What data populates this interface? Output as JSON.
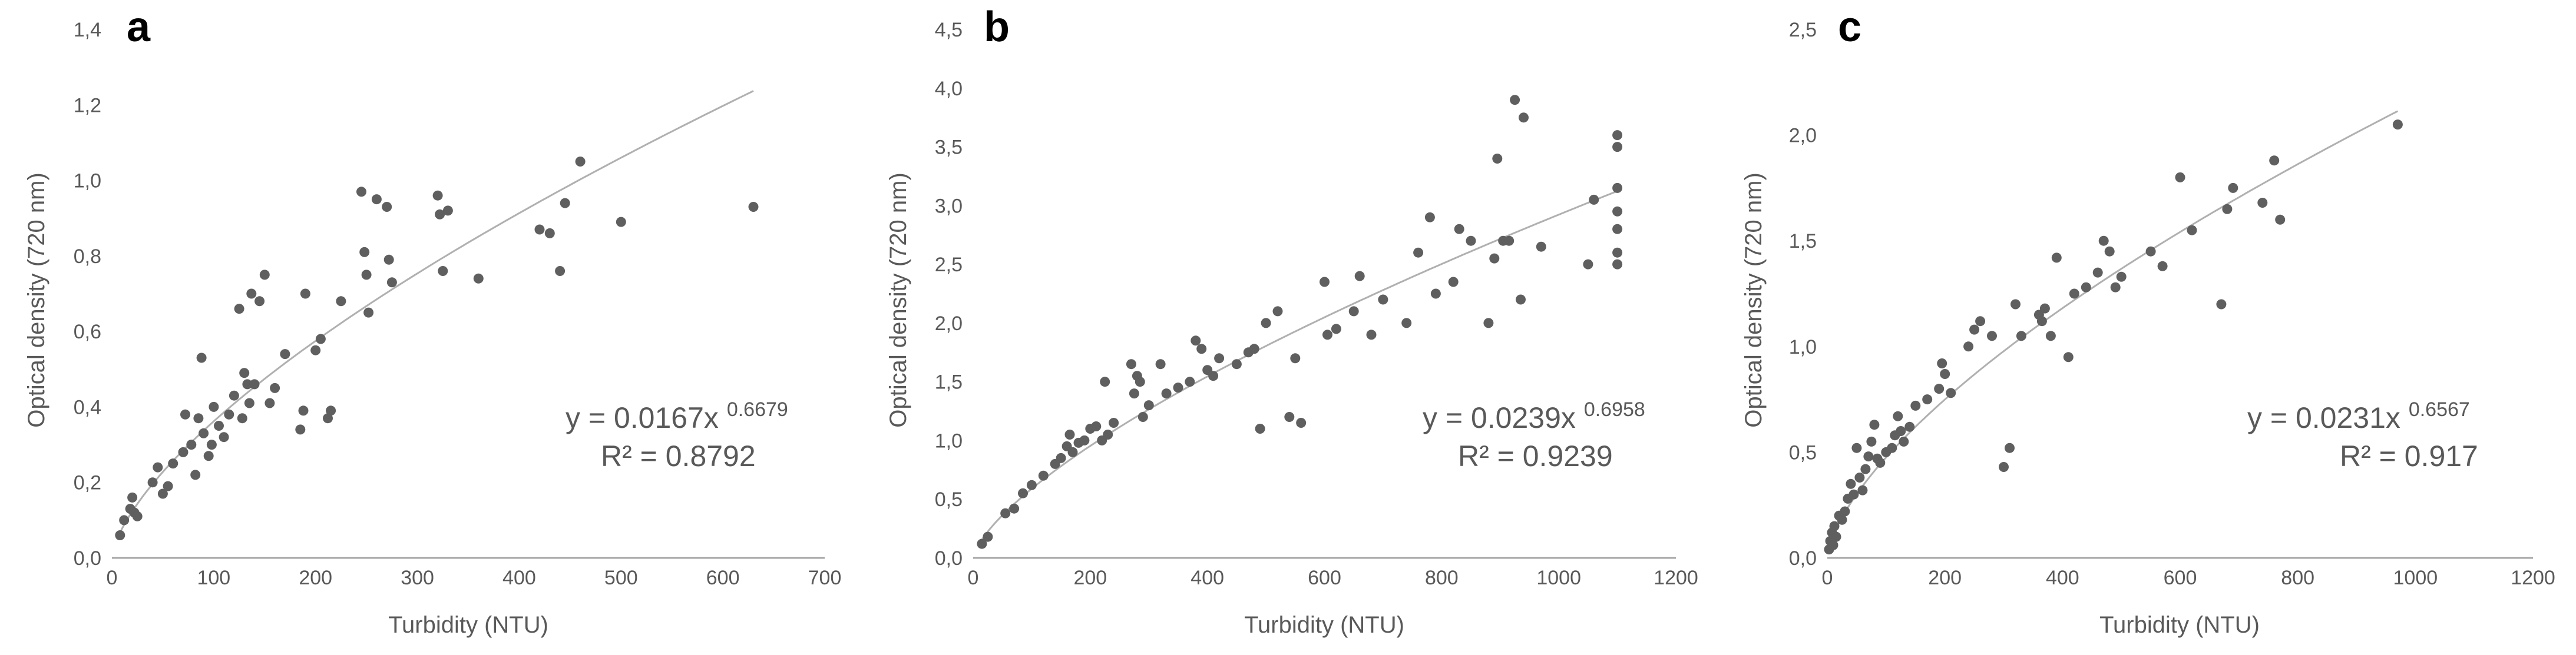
{
  "chart_data": [
    {
      "panel_label": "a",
      "type": "scatter",
      "xlabel": "Turbidity (NTU)",
      "ylabel": "Optical density (720 nm)",
      "xlim": [
        0,
        700
      ],
      "ylim": [
        0,
        1.4
      ],
      "xticks": [
        0,
        100,
        200,
        300,
        400,
        500,
        600,
        700
      ],
      "yticks": [
        "0,0",
        "0,2",
        "0,4",
        "0,6",
        "0,8",
        "1,0",
        "1,2",
        "1,4"
      ],
      "equation": "y = 0.0167x",
      "exponent": "0.6679",
      "r2": "R² = 0.8792",
      "fit": {
        "a": 0.0167,
        "b": 0.6679,
        "x_range": [
          5,
          630
        ]
      },
      "colors": {
        "points": "#5f5f5f",
        "trend": "#b0b0b0",
        "axis": "#a6a6a6",
        "tick_text": "#595959"
      },
      "points": [
        [
          8,
          0.06
        ],
        [
          12,
          0.1
        ],
        [
          18,
          0.13
        ],
        [
          20,
          0.16
        ],
        [
          22,
          0.12
        ],
        [
          25,
          0.11
        ],
        [
          40,
          0.2
        ],
        [
          45,
          0.24
        ],
        [
          50,
          0.17
        ],
        [
          55,
          0.19
        ],
        [
          60,
          0.25
        ],
        [
          70,
          0.28
        ],
        [
          72,
          0.38
        ],
        [
          78,
          0.3
        ],
        [
          82,
          0.22
        ],
        [
          85,
          0.37
        ],
        [
          88,
          0.53
        ],
        [
          90,
          0.33
        ],
        [
          95,
          0.27
        ],
        [
          98,
          0.3
        ],
        [
          100,
          0.4
        ],
        [
          105,
          0.35
        ],
        [
          110,
          0.32
        ],
        [
          115,
          0.38
        ],
        [
          120,
          0.43
        ],
        [
          125,
          0.66
        ],
        [
          128,
          0.37
        ],
        [
          130,
          0.49
        ],
        [
          133,
          0.46
        ],
        [
          135,
          0.41
        ],
        [
          137,
          0.7
        ],
        [
          140,
          0.46
        ],
        [
          145,
          0.68
        ],
        [
          150,
          0.75
        ],
        [
          155,
          0.41
        ],
        [
          160,
          0.45
        ],
        [
          170,
          0.54
        ],
        [
          185,
          0.34
        ],
        [
          188,
          0.39
        ],
        [
          190,
          0.7
        ],
        [
          200,
          0.55
        ],
        [
          205,
          0.58
        ],
        [
          212,
          0.37
        ],
        [
          215,
          0.39
        ],
        [
          225,
          0.68
        ],
        [
          245,
          0.97
        ],
        [
          248,
          0.81
        ],
        [
          250,
          0.75
        ],
        [
          252,
          0.65
        ],
        [
          260,
          0.95
        ],
        [
          270,
          0.93
        ],
        [
          272,
          0.79
        ],
        [
          275,
          0.73
        ],
        [
          320,
          0.96
        ],
        [
          322,
          0.91
        ],
        [
          325,
          0.76
        ],
        [
          330,
          0.92
        ],
        [
          360,
          0.74
        ],
        [
          420,
          0.87
        ],
        [
          430,
          0.86
        ],
        [
          440,
          0.76
        ],
        [
          445,
          0.94
        ],
        [
          460,
          1.05
        ],
        [
          500,
          0.89
        ],
        [
          630,
          0.93
        ]
      ]
    },
    {
      "panel_label": "b",
      "type": "scatter",
      "xlabel": "Turbidity (NTU)",
      "ylabel": "Optical density (720 nm)",
      "xlim": [
        0,
        1200
      ],
      "ylim": [
        0,
        4.5
      ],
      "xticks": [
        0,
        200,
        400,
        600,
        800,
        1000,
        1200
      ],
      "yticks": [
        "0,0",
        "0,5",
        "1,0",
        "1,5",
        "2,0",
        "2,5",
        "3,0",
        "3,5",
        "4,0",
        "4,5"
      ],
      "equation": "y = 0.0239x",
      "exponent": "0.6958",
      "r2": "R² = 0.9239",
      "fit": {
        "a": 0.0239,
        "b": 0.6958,
        "x_range": [
          10,
          1100
        ]
      },
      "colors": {
        "points": "#5f5f5f",
        "trend": "#b0b0b0",
        "axis": "#a6a6a6",
        "tick_text": "#595959"
      },
      "points": [
        [
          15,
          0.12
        ],
        [
          25,
          0.18
        ],
        [
          55,
          0.38
        ],
        [
          70,
          0.42
        ],
        [
          85,
          0.55
        ],
        [
          100,
          0.62
        ],
        [
          120,
          0.7
        ],
        [
          140,
          0.8
        ],
        [
          150,
          0.85
        ],
        [
          160,
          0.95
        ],
        [
          165,
          1.05
        ],
        [
          170,
          0.9
        ],
        [
          180,
          0.98
        ],
        [
          190,
          1.0
        ],
        [
          200,
          1.1
        ],
        [
          210,
          1.12
        ],
        [
          220,
          1.0
        ],
        [
          225,
          1.5
        ],
        [
          230,
          1.05
        ],
        [
          240,
          1.15
        ],
        [
          270,
          1.65
        ],
        [
          275,
          1.4
        ],
        [
          280,
          1.55
        ],
        [
          285,
          1.5
        ],
        [
          290,
          1.2
        ],
        [
          300,
          1.3
        ],
        [
          320,
          1.65
        ],
        [
          330,
          1.4
        ],
        [
          350,
          1.45
        ],
        [
          370,
          1.5
        ],
        [
          380,
          1.85
        ],
        [
          390,
          1.78
        ],
        [
          400,
          1.6
        ],
        [
          410,
          1.55
        ],
        [
          420,
          1.7
        ],
        [
          450,
          1.65
        ],
        [
          470,
          1.75
        ],
        [
          480,
          1.78
        ],
        [
          490,
          1.1
        ],
        [
          500,
          2.0
        ],
        [
          520,
          2.1
        ],
        [
          540,
          1.2
        ],
        [
          550,
          1.7
        ],
        [
          560,
          1.15
        ],
        [
          600,
          2.35
        ],
        [
          605,
          1.9
        ],
        [
          620,
          1.95
        ],
        [
          650,
          2.1
        ],
        [
          660,
          2.4
        ],
        [
          680,
          1.9
        ],
        [
          700,
          2.2
        ],
        [
          740,
          2.0
        ],
        [
          760,
          2.6
        ],
        [
          780,
          2.9
        ],
        [
          790,
          2.25
        ],
        [
          820,
          2.35
        ],
        [
          830,
          2.8
        ],
        [
          850,
          2.7
        ],
        [
          880,
          2.0
        ],
        [
          890,
          2.55
        ],
        [
          895,
          3.4
        ],
        [
          905,
          2.7
        ],
        [
          915,
          2.7
        ],
        [
          925,
          3.9
        ],
        [
          935,
          2.2
        ],
        [
          940,
          3.75
        ],
        [
          970,
          2.65
        ],
        [
          1050,
          2.5
        ],
        [
          1060,
          3.05
        ],
        [
          1100,
          2.5
        ],
        [
          1100,
          2.6
        ],
        [
          1100,
          2.8
        ],
        [
          1100,
          2.95
        ],
        [
          1100,
          3.15
        ],
        [
          1100,
          3.5
        ],
        [
          1100,
          3.6
        ]
      ]
    },
    {
      "panel_label": "c",
      "type": "scatter",
      "xlabel": "Turbidity (NTU)",
      "ylabel": "Optical density (720 nm)",
      "xlim": [
        0,
        1200
      ],
      "ylim": [
        0,
        2.5
      ],
      "xticks": [
        0,
        200,
        400,
        600,
        800,
        1000,
        1200
      ],
      "yticks": [
        "0,0",
        "0,5",
        "1,0",
        "1,5",
        "2,0",
        "2,5"
      ],
      "equation": "y = 0.0231x",
      "exponent": "0.6567",
      "r2": "R² = 0.917",
      "fit": {
        "a": 0.0231,
        "b": 0.6567,
        "x_range": [
          3,
          970
        ]
      },
      "colors": {
        "points": "#5f5f5f",
        "trend": "#b0b0b0",
        "axis": "#a6a6a6",
        "tick_text": "#595959"
      },
      "points": [
        [
          3,
          0.04
        ],
        [
          5,
          0.08
        ],
        [
          8,
          0.12
        ],
        [
          10,
          0.06
        ],
        [
          12,
          0.15
        ],
        [
          15,
          0.1
        ],
        [
          20,
          0.2
        ],
        [
          25,
          0.18
        ],
        [
          30,
          0.22
        ],
        [
          35,
          0.28
        ],
        [
          40,
          0.35
        ],
        [
          45,
          0.3
        ],
        [
          50,
          0.52
        ],
        [
          55,
          0.38
        ],
        [
          60,
          0.32
        ],
        [
          65,
          0.42
        ],
        [
          70,
          0.48
        ],
        [
          75,
          0.55
        ],
        [
          80,
          0.63
        ],
        [
          85,
          0.47
        ],
        [
          90,
          0.45
        ],
        [
          100,
          0.5
        ],
        [
          110,
          0.52
        ],
        [
          115,
          0.58
        ],
        [
          120,
          0.67
        ],
        [
          125,
          0.6
        ],
        [
          130,
          0.55
        ],
        [
          140,
          0.62
        ],
        [
          150,
          0.72
        ],
        [
          170,
          0.75
        ],
        [
          190,
          0.8
        ],
        [
          195,
          0.92
        ],
        [
          200,
          0.87
        ],
        [
          210,
          0.78
        ],
        [
          240,
          1.0
        ],
        [
          250,
          1.08
        ],
        [
          260,
          1.12
        ],
        [
          280,
          1.05
        ],
        [
          300,
          0.43
        ],
        [
          310,
          0.52
        ],
        [
          320,
          1.2
        ],
        [
          330,
          1.05
        ],
        [
          360,
          1.15
        ],
        [
          365,
          1.12
        ],
        [
          370,
          1.18
        ],
        [
          380,
          1.05
        ],
        [
          390,
          1.42
        ],
        [
          410,
          0.95
        ],
        [
          420,
          1.25
        ],
        [
          440,
          1.28
        ],
        [
          460,
          1.35
        ],
        [
          470,
          1.5
        ],
        [
          480,
          1.45
        ],
        [
          490,
          1.28
        ],
        [
          500,
          1.33
        ],
        [
          550,
          1.45
        ],
        [
          570,
          1.38
        ],
        [
          600,
          1.8
        ],
        [
          620,
          1.55
        ],
        [
          670,
          1.2
        ],
        [
          680,
          1.65
        ],
        [
          690,
          1.75
        ],
        [
          740,
          1.68
        ],
        [
          760,
          1.88
        ],
        [
          770,
          1.6
        ],
        [
          970,
          2.05
        ]
      ]
    }
  ]
}
